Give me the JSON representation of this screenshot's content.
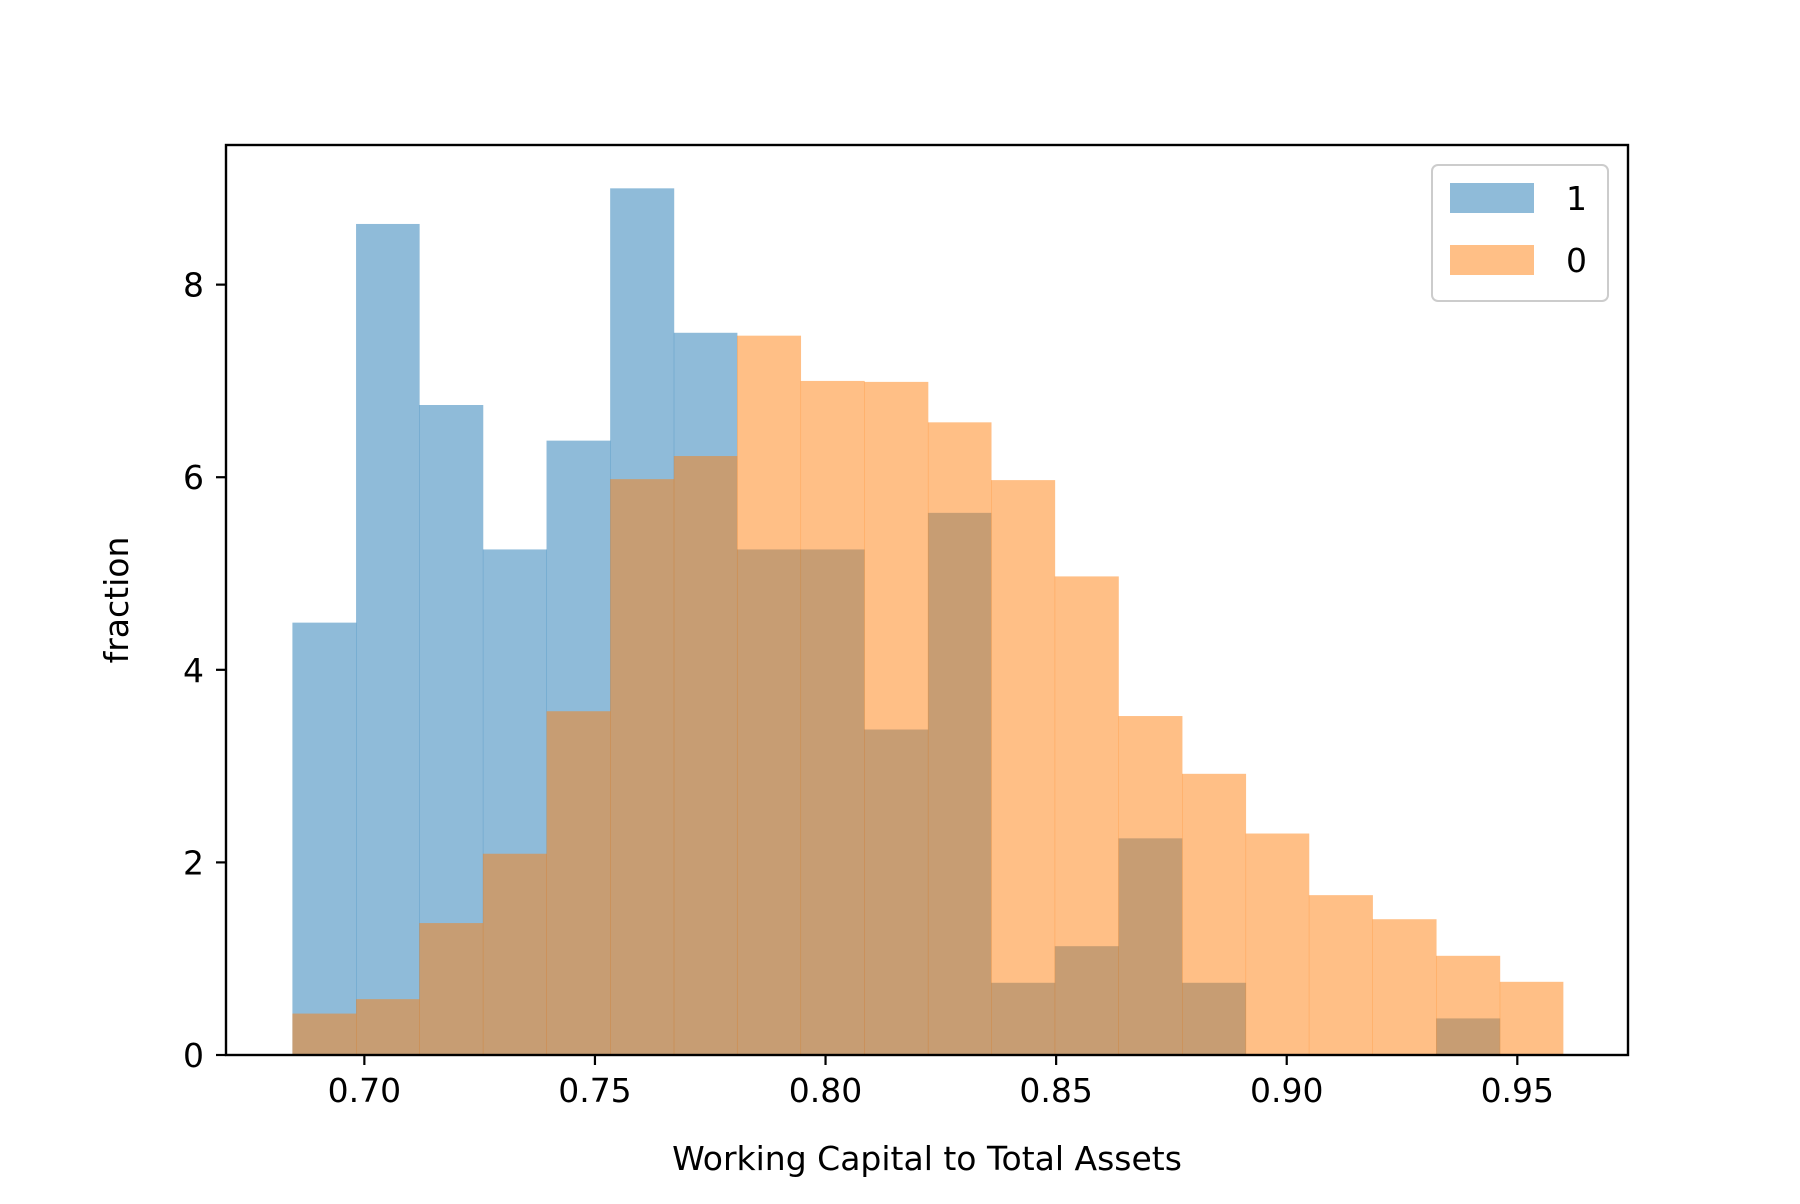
{
  "chart_data": {
    "type": "histogram",
    "title": "",
    "xlabel": "Working Capital to Total Assets",
    "ylabel": "fraction",
    "xlim": [
      0.67,
      0.974
    ],
    "ylim": [
      0,
      9.45
    ],
    "x_ticks": [
      0.7,
      0.75,
      0.8,
      0.85,
      0.9,
      0.95
    ],
    "x_tick_labels": [
      "0.70",
      "0.75",
      "0.80",
      "0.85",
      "0.90",
      "0.95"
    ],
    "y_ticks": [
      0,
      2,
      4,
      6,
      8
    ],
    "y_tick_labels": [
      "0",
      "2",
      "4",
      "6",
      "8"
    ],
    "bin_edges": [
      0.6844,
      0.6982,
      0.7119,
      0.7257,
      0.7395,
      0.7533,
      0.7671,
      0.7808,
      0.7946,
      0.8084,
      0.8222,
      0.8359,
      0.8497,
      0.8635,
      0.8773,
      0.8911,
      0.9048,
      0.9186,
      0.9324,
      0.9462,
      0.9599
    ],
    "grid": false,
    "legend_position": "upper right",
    "series": [
      {
        "name": "1",
        "color": "#1f77b4",
        "alpha": 0.5,
        "values": [
          4.49,
          8.63,
          6.75,
          5.25,
          6.38,
          9.0,
          7.5,
          5.25,
          5.25,
          3.38,
          5.63,
          0.75,
          1.13,
          2.25,
          0.75,
          0,
          0,
          0,
          0.38,
          0
        ]
      },
      {
        "name": "0",
        "color": "#ff7f0e",
        "alpha": 0.5,
        "values": [
          0.43,
          0.58,
          1.37,
          2.09,
          3.57,
          5.98,
          6.22,
          7.47,
          7.0,
          6.99,
          6.57,
          5.97,
          4.97,
          3.52,
          2.92,
          2.3,
          1.66,
          1.41,
          1.03,
          0.76
        ]
      }
    ]
  }
}
